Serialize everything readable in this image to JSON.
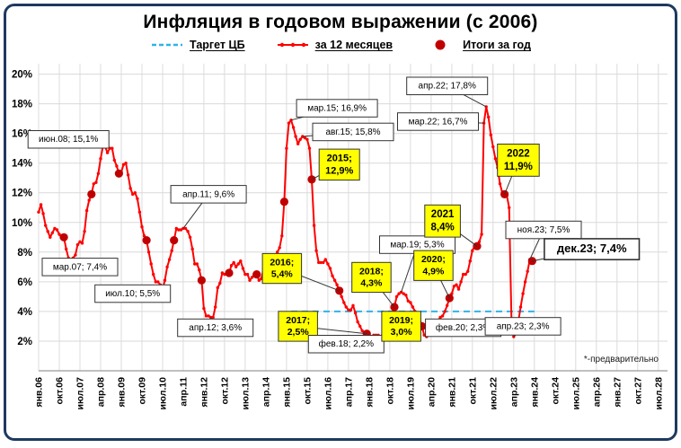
{
  "title": "Инфляция в годовом выражении (с 2006)",
  "footnote": "*-предварительно",
  "legend": [
    {
      "id": "target-cb",
      "label": "Таргет ЦБ",
      "type": "dashed",
      "color": "#2FB3E9"
    },
    {
      "id": "za-12-mesyacev",
      "label": "за 12 месяцев",
      "type": "line-markers",
      "color": "#FF0000"
    },
    {
      "id": "itogi-za-god",
      "label": "Итоги за год",
      "type": "dot",
      "color": "#C00000"
    }
  ],
  "chart_data": {
    "type": "line",
    "title": "Инфляция в годовом выражении (с 2006)",
    "xlabel": "",
    "ylabel": "",
    "grid": true,
    "legend_position": "top",
    "x_start": "2006-01",
    "x_tick_step_months": 9,
    "x_range_months": [
      0,
      274
    ],
    "ylim": [
      0,
      20.7
    ],
    "y_ticks": [
      2,
      4,
      6,
      8,
      10,
      12,
      14,
      16,
      18,
      20
    ],
    "x_tick_labels": [
      "янв.06",
      "окт.06",
      "июл.07",
      "апр.08",
      "янв.09",
      "окт.09",
      "июл.10",
      "апр.11",
      "янв.12",
      "окт.12",
      "июл.13",
      "апр.14",
      "янв.15",
      "окт.15",
      "июл.16",
      "апр.17",
      "янв.18",
      "окт.18",
      "июл.19",
      "апр.20",
      "янв.21",
      "окт.21",
      "июл.22",
      "апр.23",
      "янв.24",
      "окт.24",
      "июл.25",
      "апр.26",
      "янв.27",
      "окт.27",
      "июл.28"
    ],
    "target_line": {
      "name": "Таргет ЦБ",
      "value": 4,
      "from_month": 110,
      "to_month": 216,
      "color": "#2FB3E9"
    },
    "monthly_series": {
      "name": "за 12 месяцев",
      "color": "#FF0000",
      "start": "2006-01",
      "values": [
        10.7,
        11.2,
        10.6,
        9.8,
        9.4,
        9.0,
        9.3,
        9.6,
        9.5,
        9.2,
        9.0,
        9.0,
        8.2,
        7.6,
        7.4,
        7.6,
        7.8,
        8.5,
        8.7,
        8.6,
        9.4,
        10.8,
        11.5,
        11.9,
        12.6,
        12.7,
        13.3,
        14.3,
        15.1,
        15.1,
        14.7,
        15.0,
        15.0,
        14.2,
        13.8,
        13.3,
        13.4,
        13.9,
        14.0,
        13.2,
        12.3,
        11.9,
        12.0,
        11.6,
        10.7,
        9.7,
        9.1,
        8.8,
        8.0,
        7.2,
        6.5,
        6.0,
        6.0,
        5.8,
        5.5,
        6.1,
        7.0,
        7.5,
        8.1,
        8.8,
        9.6,
        9.5,
        9.5,
        9.6,
        9.6,
        9.4,
        9.0,
        8.2,
        7.2,
        7.2,
        6.8,
        6.1,
        4.2,
        3.7,
        3.7,
        3.6,
        3.6,
        4.3,
        5.6,
        5.9,
        6.6,
        6.5,
        6.5,
        6.6,
        7.1,
        7.3,
        7.0,
        7.2,
        7.4,
        6.9,
        6.5,
        6.5,
        6.1,
        6.3,
        6.5,
        6.5,
        6.1,
        6.2,
        6.9,
        7.3,
        7.6,
        7.8,
        7.5,
        7.6,
        8.0,
        8.3,
        9.1,
        11.4,
        15.0,
        16.7,
        16.9,
        16.4,
        15.8,
        15.3,
        15.6,
        15.8,
        15.7,
        15.6,
        15.0,
        12.9,
        9.8,
        8.1,
        7.3,
        7.3,
        7.3,
        7.5,
        7.2,
        6.9,
        6.4,
        6.1,
        5.8,
        5.4,
        5.0,
        4.6,
        4.3,
        4.1,
        4.1,
        4.4,
        3.9,
        3.3,
        3.0,
        2.7,
        2.5,
        2.5,
        2.2,
        2.2,
        2.4,
        2.4,
        2.4,
        2.3,
        2.5,
        3.1,
        3.4,
        3.5,
        3.8,
        4.3,
        5.0,
        5.2,
        5.3,
        5.2,
        5.1,
        4.7,
        4.6,
        4.3,
        4.0,
        3.8,
        3.5,
        3.0,
        2.4,
        2.3,
        2.5,
        3.1,
        3.0,
        3.2,
        3.4,
        3.6,
        3.7,
        4.0,
        4.4,
        4.9,
        5.2,
        5.7,
        5.8,
        5.5,
        6.0,
        6.5,
        6.5,
        6.7,
        7.4,
        8.1,
        8.4,
        8.4,
        8.7,
        9.2,
        16.7,
        17.8,
        17.1,
        15.9,
        15.1,
        14.3,
        13.7,
        12.6,
        12.0,
        11.9,
        11.8,
        11.0,
        3.5,
        2.3,
        2.5,
        3.3,
        4.3,
        5.2,
        6.0,
        6.7,
        7.5,
        7.4
      ]
    },
    "year_end": {
      "name": "Итоги за год",
      "color": "#C00000",
      "points": [
        {
          "year": 2006,
          "month_index": 11,
          "value": 9.0
        },
        {
          "year": 2007,
          "month_index": 23,
          "value": 11.9
        },
        {
          "year": 2008,
          "month_index": 35,
          "value": 13.3
        },
        {
          "year": 2009,
          "month_index": 47,
          "value": 8.8
        },
        {
          "year": 2010,
          "month_index": 59,
          "value": 8.8
        },
        {
          "year": 2011,
          "month_index": 71,
          "value": 6.1
        },
        {
          "year": 2012,
          "month_index": 83,
          "value": 6.6
        },
        {
          "year": 2013,
          "month_index": 95,
          "value": 6.5
        },
        {
          "year": 2014,
          "month_index": 107,
          "value": 11.4
        },
        {
          "year": 2015,
          "month_index": 119,
          "value": 12.9
        },
        {
          "year": 2016,
          "month_index": 131,
          "value": 5.4
        },
        {
          "year": 2017,
          "month_index": 143,
          "value": 2.5
        },
        {
          "year": 2018,
          "month_index": 155,
          "value": 4.3
        },
        {
          "year": 2019,
          "month_index": 167,
          "value": 3.0
        },
        {
          "year": 2020,
          "month_index": 179,
          "value": 4.9
        },
        {
          "year": 2021,
          "month_index": 191,
          "value": 8.4
        },
        {
          "year": 2022,
          "month_index": 203,
          "value": 11.9
        },
        {
          "year": 2023,
          "month_index": 215,
          "value": 7.4
        }
      ]
    },
    "annotations": [
      {
        "lines": [
          "июн.08; 15,1%"
        ],
        "ax": 28,
        "ay": 15.1,
        "bx": 13,
        "by": 15.6,
        "style": "white",
        "fs": 10
      },
      {
        "lines": [
          "мар.07; 7,4%"
        ],
        "ax": 14,
        "ay": 7.4,
        "bx": 18,
        "by": 7.0,
        "style": "white",
        "fs": 10
      },
      {
        "lines": [
          "июл.10; 5,5%"
        ],
        "ax": 54,
        "ay": 5.5,
        "bx": 41,
        "by": 5.2,
        "style": "white",
        "fs": 10
      },
      {
        "lines": [
          "апр.11; 9,6%"
        ],
        "ax": 63,
        "ay": 9.6,
        "bx": 74,
        "by": 11.9,
        "style": "white",
        "fs": 10
      },
      {
        "lines": [
          "апр.12; 3,6%"
        ],
        "ax": 75,
        "ay": 3.6,
        "bx": 77,
        "by": 2.9,
        "style": "white",
        "fs": 10
      },
      {
        "lines": [
          "мар.15; 16,9%"
        ],
        "ax": 110,
        "ay": 16.9,
        "bx": 130,
        "by": 17.7,
        "style": "white",
        "fs": 10
      },
      {
        "lines": [
          "авг.15; 15,8%"
        ],
        "ax": 115,
        "ay": 15.8,
        "bx": 137,
        "by": 16.1,
        "style": "white",
        "fs": 10
      },
      {
        "lines": [
          "2015;",
          "12,9%"
        ],
        "ax": 119,
        "ay": 12.9,
        "bx": 131,
        "by": 13.9,
        "style": "yellow",
        "fs": 11
      },
      {
        "lines": [
          "2016;",
          "5,4%"
        ],
        "ax": 131,
        "ay": 5.4,
        "bx": 106,
        "by": 6.9,
        "style": "yellow",
        "fs": 10.5
      },
      {
        "lines": [
          "2017;",
          "2,5%"
        ],
        "ax": 143,
        "ay": 2.5,
        "bx": 113,
        "by": 3.0,
        "style": "yellow",
        "fs": 10.5
      },
      {
        "lines": [
          "фев.18; 2,2%"
        ],
        "ax": 145,
        "ay": 2.2,
        "bx": 134,
        "by": 1.8,
        "style": "white",
        "fs": 10
      },
      {
        "lines": [
          "2018;",
          "4,3%"
        ],
        "ax": 155,
        "ay": 4.3,
        "bx": 145,
        "by": 6.3,
        "style": "yellow",
        "fs": 10.5
      },
      {
        "lines": [
          "2019;",
          "3,0%"
        ],
        "ax": 167,
        "ay": 3.0,
        "bx": 158,
        "by": 3.0,
        "style": "yellow",
        "fs": 10.5
      },
      {
        "lines": [
          "мар.19; 5,3%"
        ],
        "ax": 158,
        "ay": 5.3,
        "bx": 165,
        "by": 8.5,
        "style": "white",
        "fs": 10
      },
      {
        "lines": [
          "2020;",
          "4,9%"
        ],
        "ax": 179,
        "ay": 4.9,
        "bx": 172,
        "by": 7.1,
        "style": "yellow",
        "fs": 10.5
      },
      {
        "lines": [
          "фев.20; 2,3%"
        ],
        "ax": 169,
        "ay": 2.3,
        "bx": 185,
        "by": 2.9,
        "style": "white",
        "fs": 10
      },
      {
        "lines": [
          "2021",
          "8,4%"
        ],
        "ax": 191,
        "ay": 8.4,
        "bx": 176,
        "by": 10.1,
        "style": "yellow",
        "fs": 11.5
      },
      {
        "lines": [
          "мар.22; 16,7%"
        ],
        "ax": 194,
        "ay": 16.7,
        "bx": 174,
        "by": 16.8,
        "style": "white",
        "fs": 10
      },
      {
        "lines": [
          "апр.22; 17,8%"
        ],
        "ax": 195,
        "ay": 17.8,
        "bx": 178,
        "by": 19.2,
        "style": "white",
        "fs": 10
      },
      {
        "lines": [
          "2022",
          "11,9%"
        ],
        "ax": 203,
        "ay": 11.9,
        "bx": 209,
        "by": 14.2,
        "style": "yellow",
        "fs": 11.5
      },
      {
        "lines": [
          "апр.23; 2,3%"
        ],
        "ax": 207,
        "ay": 2.3,
        "bx": 211,
        "by": 3.0,
        "style": "white",
        "fs": 10
      },
      {
        "lines": [
          "ноя.23; 7,5%"
        ],
        "ax": 214,
        "ay": 7.5,
        "bx": 220,
        "by": 9.5,
        "style": "white",
        "fs": 10
      },
      {
        "lines": [
          "дек.23; 7,4%"
        ],
        "ax": 215,
        "ay": 7.4,
        "bx": 241,
        "by": 8.2,
        "style": "bold",
        "fs": 13
      }
    ]
  }
}
